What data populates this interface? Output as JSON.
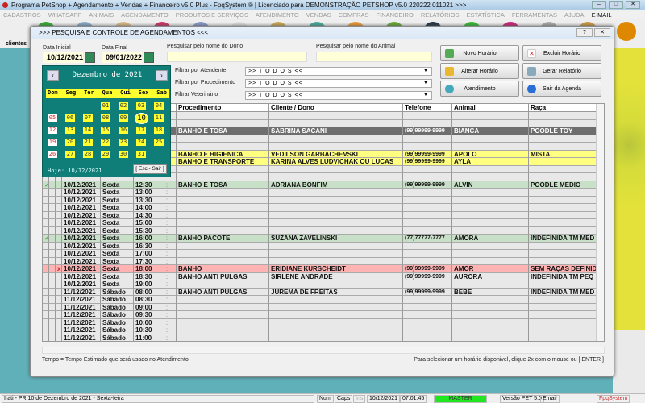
{
  "window": {
    "title": "Programa PetShop + Agendamento + Vendas + Financeiro v5.0 Plus - FpqSystem ® | Licenciado para  DEMONSTRAÇÃO PETSHOP v5.0 220222 011021 >>>"
  },
  "menu": [
    "CADASTROS",
    "WHATSAPP",
    "ANIMAIS",
    "AGENDAMENTO",
    "PRODUTOS E SERVIÇOS",
    "ATENDIMENTO",
    "VENDAS",
    "COMPRAS",
    "FINANCEIRO",
    "RELATÓRIOS",
    "ESTATÍSTICA",
    "FERRAMENTAS",
    "AJUDA",
    "E-MAIL"
  ],
  "toolbar": {
    "clientes_label": "clientes"
  },
  "dialog": {
    "title": ">>>  PESQUISA E CONTROLE DE AGENDAMENTOS  <<<",
    "data_inicial_label": "Data Inicial",
    "data_inicial": "10/12/2021",
    "data_final_label": "Data Final",
    "data_final": "09/01/2022",
    "dono_label": "Pesquisar pelo nome do Dono",
    "animal_label": "Pesquisar pelo nome do Animal",
    "filters": [
      {
        "label": "Filtrar por Atendente",
        "value": ">> T O D O S <<"
      },
      {
        "label": "Filtrar por Procedimento",
        "value": ">> T O D O S <<"
      },
      {
        "label": "Filtrar Veterinário",
        "value": ">> T O D O S <<"
      }
    ],
    "buttons": {
      "novo": "Novo Horário",
      "excluir": "Excluir Horário",
      "alterar": "Alterar Horário",
      "relatorio": "Gerar Relatório",
      "atendimento": "Atendimento",
      "sair": "Sair da Agenda"
    },
    "footer_left": "Tempo = Tempo Estimado que será usado no Atendimento",
    "footer_right": "Para selecionar um horário disponivel, clique 2x com o mouse ou [ ENTER ]"
  },
  "calendar": {
    "month": "Dezembro de 2021",
    "weekdays": [
      "Dom",
      "Seg",
      "Ter",
      "Qua",
      "Qui",
      "Sex",
      "Sab"
    ],
    "selected_day": "10",
    "hoje": "Hoje: 10/12/2021",
    "esc": "[ Esc - Sair ]",
    "first_weekday": 3,
    "days_in_month": 31
  },
  "grid": {
    "columns": [
      "Procedimento",
      "Cliente / Dono",
      "Telefone",
      "Animal",
      "Raça"
    ],
    "rows": [
      {
        "mark": "",
        "date": "",
        "day": "",
        "time": "",
        "proc": "",
        "cliente": "",
        "tel": "",
        "animal": "",
        "raca": "",
        "style": "normal"
      },
      {
        "mark": "",
        "date": "",
        "day": "",
        "time": "",
        "proc": "",
        "cliente": "",
        "tel": "",
        "animal": "",
        "raca": "",
        "style": "normal"
      },
      {
        "mark": "",
        "date": "",
        "day": "",
        "time": "",
        "proc": "BANHO E TOSA",
        "cliente": "SABRINA SACANI",
        "tel": "(99)99999-9999",
        "animal": "BIANCA",
        "raca": "POODLE TOY",
        "style": "selected"
      },
      {
        "mark": "",
        "date": "",
        "day": "",
        "time": "",
        "proc": "",
        "cliente": "",
        "tel": "",
        "animal": "",
        "raca": "",
        "style": "normal"
      },
      {
        "mark": "",
        "date": "",
        "day": "",
        "time": "",
        "proc": "",
        "cliente": "",
        "tel": "",
        "animal": "",
        "raca": "",
        "style": "normal"
      },
      {
        "mark": "",
        "date": "",
        "day": "",
        "time": "",
        "proc": "BANHO E HIGIENICA",
        "cliente": "VEDILSON GARBACHEVSKI",
        "tel": "(99)99999-9999",
        "animal": "APOLO",
        "raca": "MISTA",
        "style": "yellow"
      },
      {
        "mark": "",
        "date": "",
        "day": "",
        "time": "",
        "proc": "BANHO E TRANSPORTE",
        "cliente": "KARINA ALVES LUDVICHAK OU LUCAS",
        "tel": "(99)99999-9999",
        "animal": "AYLA",
        "raca": "",
        "style": "yellow"
      },
      {
        "mark": "",
        "date": "",
        "day": "",
        "time": "",
        "proc": "",
        "cliente": "",
        "tel": "",
        "animal": "",
        "raca": "",
        "style": "normal"
      },
      {
        "mark": "",
        "date": "",
        "day": "",
        "time": "",
        "proc": "",
        "cliente": "",
        "tel": "",
        "animal": "",
        "raca": "",
        "style": "normal"
      },
      {
        "mark": "✓",
        "date": "10/12/2021",
        "day": "Sexta",
        "time": "12:30",
        "proc": "BANHO E TOSA",
        "cliente": "ADRIANA BONFIM",
        "tel": "(99)99999-9999",
        "animal": "ALVIN",
        "raca": "POODLE MEDIO",
        "style": "green"
      },
      {
        "mark": "",
        "date": "10/12/2021",
        "day": "Sexta",
        "time": "13:00",
        "proc": "",
        "cliente": "",
        "tel": "",
        "animal": "",
        "raca": "",
        "style": "normal"
      },
      {
        "mark": "",
        "date": "10/12/2021",
        "day": "Sexta",
        "time": "13:30",
        "proc": "",
        "cliente": "",
        "tel": "",
        "animal": "",
        "raca": "",
        "style": "normal"
      },
      {
        "mark": "",
        "date": "10/12/2021",
        "day": "Sexta",
        "time": "14:00",
        "proc": "",
        "cliente": "",
        "tel": "",
        "animal": "",
        "raca": "",
        "style": "normal"
      },
      {
        "mark": "",
        "date": "10/12/2021",
        "day": "Sexta",
        "time": "14:30",
        "proc": "",
        "cliente": "",
        "tel": "",
        "animal": "",
        "raca": "",
        "style": "normal"
      },
      {
        "mark": "",
        "date": "10/12/2021",
        "day": "Sexta",
        "time": "15:00",
        "proc": "",
        "cliente": "",
        "tel": "",
        "animal": "",
        "raca": "",
        "style": "normal"
      },
      {
        "mark": "",
        "date": "10/12/2021",
        "day": "Sexta",
        "time": "15:30",
        "proc": "",
        "cliente": "",
        "tel": "",
        "animal": "",
        "raca": "",
        "style": "normal"
      },
      {
        "mark": "✓",
        "date": "10/12/2021",
        "day": "Sexta",
        "time": "16:00",
        "proc": "BANHO PACOTE",
        "cliente": "SUZANA ZAVELINSKI",
        "tel": "(77)77777-7777",
        "animal": "AMORA",
        "raca": "INDEFINIDA TM MÉD",
        "style": "green"
      },
      {
        "mark": "",
        "date": "10/12/2021",
        "day": "Sexta",
        "time": "16:30",
        "proc": "",
        "cliente": "",
        "tel": "",
        "animal": "",
        "raca": "",
        "style": "normal"
      },
      {
        "mark": "",
        "date": "10/12/2021",
        "day": "Sexta",
        "time": "17:00",
        "proc": "",
        "cliente": "",
        "tel": "",
        "animal": "",
        "raca": "",
        "style": "normal"
      },
      {
        "mark": "",
        "date": "10/12/2021",
        "day": "Sexta",
        "time": "17:30",
        "proc": "",
        "cliente": "",
        "tel": "",
        "animal": "",
        "raca": "",
        "style": "normal"
      },
      {
        "mark": "x",
        "date": "10/12/2021",
        "day": "Sexta",
        "time": "18:00",
        "proc": "BANHO",
        "cliente": "ERIDIANE KURSCHEIDT",
        "tel": "(99)99999-9999",
        "animal": "AMOR",
        "raca": "SEM RAÇAS DEFINID",
        "style": "red"
      },
      {
        "mark": "",
        "date": "10/12/2021",
        "day": "Sexta",
        "time": "18:30",
        "proc": "BANHO ANTI PULGAS",
        "cliente": "SIRLENE ANDRADE",
        "tel": "(99)99999-9999",
        "animal": "AURORA",
        "raca": "INDEFINIDA TM PEQ",
        "style": "normal"
      },
      {
        "mark": "",
        "date": "10/12/2021",
        "day": "Sexta",
        "time": "19:00",
        "proc": "",
        "cliente": "",
        "tel": "",
        "animal": "",
        "raca": "",
        "style": "normal"
      },
      {
        "mark": "",
        "date": "11/12/2021",
        "day": "Sábado",
        "time": "08:00",
        "proc": "BANHO ANTI PULGAS",
        "cliente": "JUREMA DE FREITAS",
        "tel": "(99)99999-9999",
        "animal": "BEBE",
        "raca": "INDEFINIDA TM MÉD",
        "style": "normal"
      },
      {
        "mark": "",
        "date": "11/12/2021",
        "day": "Sábado",
        "time": "08:30",
        "proc": "",
        "cliente": "",
        "tel": "",
        "animal": "",
        "raca": "",
        "style": "normal"
      },
      {
        "mark": "",
        "date": "11/12/2021",
        "day": "Sábado",
        "time": "09:00",
        "proc": "",
        "cliente": "",
        "tel": "",
        "animal": "",
        "raca": "",
        "style": "normal"
      },
      {
        "mark": "",
        "date": "11/12/2021",
        "day": "Sábado",
        "time": "09:30",
        "proc": "",
        "cliente": "",
        "tel": "",
        "animal": "",
        "raca": "",
        "style": "normal"
      },
      {
        "mark": "",
        "date": "11/12/2021",
        "day": "Sábado",
        "time": "10:00",
        "proc": "",
        "cliente": "",
        "tel": "",
        "animal": "",
        "raca": "",
        "style": "normal"
      },
      {
        "mark": "",
        "date": "11/12/2021",
        "day": "Sábado",
        "time": "10:30",
        "proc": "",
        "cliente": "",
        "tel": "",
        "animal": "",
        "raca": "",
        "style": "normal"
      },
      {
        "mark": "",
        "date": "11/12/2021",
        "day": "Sábado",
        "time": "11:00",
        "proc": "",
        "cliente": "",
        "tel": "",
        "animal": "",
        "raca": "",
        "style": "normal"
      }
    ],
    "tempo_sep": ":"
  },
  "statusbar": {
    "location": "Irati - PR 10 de Dezembro de 2021 - Sexta-feira",
    "num": "Num",
    "caps": "Caps",
    "ins": "Ins",
    "date": "10/12/2021",
    "time": "07:01:45",
    "user": "MASTER",
    "version": "Versão PET 5.0",
    "email": "Email",
    "brand": "FpqSystem"
  },
  "colors": {
    "selected": "#6e6e6e",
    "yellow": "#ffff80",
    "green": "#c8e0c8",
    "red": "#ffb3b3",
    "normal": "#e8e8e8",
    "master": "#22e622"
  }
}
